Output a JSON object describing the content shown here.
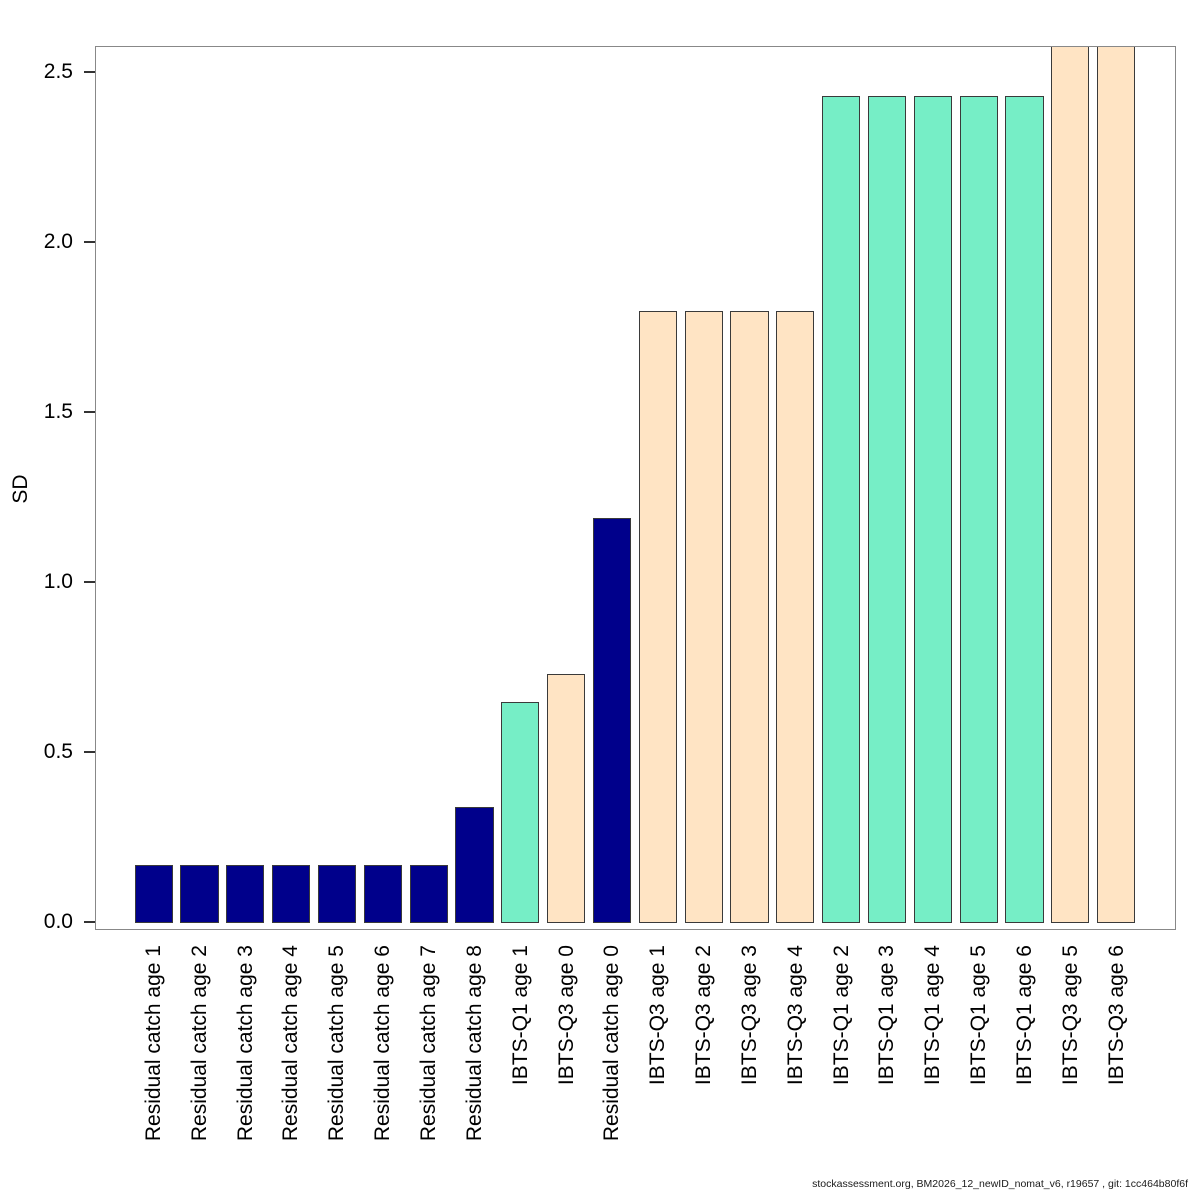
{
  "figure": {
    "title": "",
    "ylabel": "SD",
    "footer": "stockassessment.org, BM2026_12_newID_nomat_v6, r19657 , git: 1cc464b80f6f"
  },
  "colors": {
    "background": "#FFFFFF",
    "plot_border": "#888888",
    "bar_border": "#3A3A3A",
    "tick_mark": "#333333",
    "text": "#000000",
    "footer_text": "#1A1A1A"
  },
  "fleet_colors": {
    "Residual catch": "#00008B",
    "IBTS-Q1": "#76EEC6",
    "IBTS-Q3": "#FFE4C4"
  },
  "chart_data": {
    "type": "bar",
    "title": "",
    "xlabel": "",
    "ylabel": "SD",
    "ylim": [
      0,
      2.575
    ],
    "grid": false,
    "legend": null,
    "yticks": [
      0,
      0.5,
      1,
      1.5,
      2,
      2.5
    ],
    "ytick_labels": [
      "0.0",
      "0.5",
      "1.0",
      "1.5",
      "2.0",
      "2.5"
    ],
    "categories": [
      "Residual catch age 1",
      "Residual catch age 2",
      "Residual catch age 3",
      "Residual catch age 4",
      "Residual catch age 5",
      "Residual catch age 6",
      "Residual catch age 7",
      "Residual catch age 8",
      "IBTS-Q1 age 1",
      "IBTS-Q3 age 0",
      "Residual catch age 0",
      "IBTS-Q3 age 1",
      "IBTS-Q3 age 2",
      "IBTS-Q3 age 3",
      "IBTS-Q3 age 4",
      "IBTS-Q1 age 2",
      "IBTS-Q1 age 3",
      "IBTS-Q1 age 4",
      "IBTS-Q1 age 5",
      "IBTS-Q1 age 6",
      "IBTS-Q3 age 5",
      "IBTS-Q3 age 6"
    ],
    "values": [
      0.17,
      0.17,
      0.17,
      0.17,
      0.17,
      0.17,
      0.17,
      0.34,
      0.65,
      0.73,
      1.19,
      1.8,
      1.8,
      1.8,
      1.8,
      2.43,
      2.43,
      2.43,
      2.43,
      2.43,
      2.58,
      2.58
    ],
    "fleets": [
      "Residual catch",
      "Residual catch",
      "Residual catch",
      "Residual catch",
      "Residual catch",
      "Residual catch",
      "Residual catch",
      "Residual catch",
      "IBTS-Q1",
      "IBTS-Q3",
      "Residual catch",
      "IBTS-Q3",
      "IBTS-Q3",
      "IBTS-Q3",
      "IBTS-Q3",
      "IBTS-Q1",
      "IBTS-Q1",
      "IBTS-Q1",
      "IBTS-Q1",
      "IBTS-Q1",
      "IBTS-Q3",
      "IBTS-Q3"
    ],
    "clipped_at_top": [
      "IBTS-Q3 age 5",
      "IBTS-Q3 age 6"
    ]
  }
}
